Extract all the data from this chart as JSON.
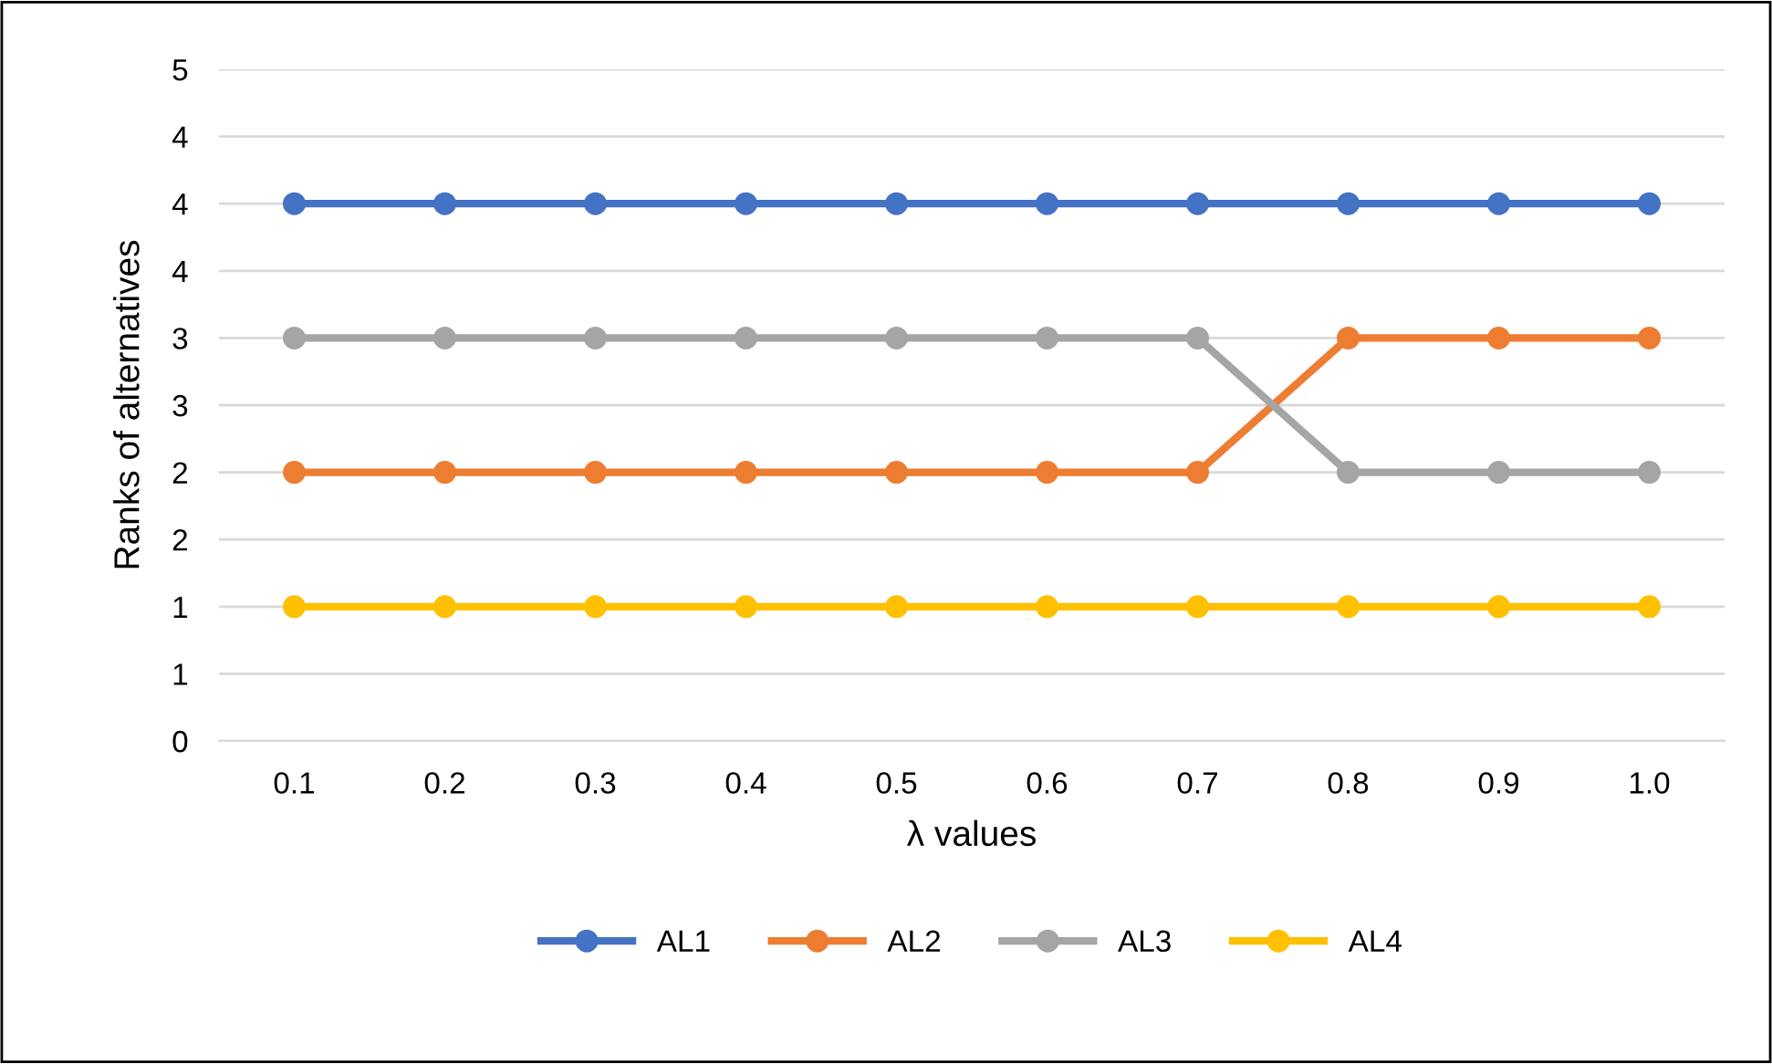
{
  "chart_data": {
    "type": "line",
    "xlabel": "λ values",
    "ylabel": "Ranks of alternatives",
    "categories": [
      "0.1",
      "0.2",
      "0.3",
      "0.4",
      "0.5",
      "0.6",
      "0.7",
      "0.8",
      "0.9",
      "1.0"
    ],
    "series": [
      {
        "name": "AL1",
        "color": "#4472c4",
        "values": [
          4,
          4,
          4,
          4,
          4,
          4,
          4,
          4,
          4,
          4
        ]
      },
      {
        "name": "AL2",
        "color": "#ed7d31",
        "values": [
          2,
          2,
          2,
          2,
          2,
          2,
          2,
          3,
          3,
          3
        ]
      },
      {
        "name": "AL3",
        "color": "#a5a5a5",
        "values": [
          3,
          3,
          3,
          3,
          3,
          3,
          3,
          2,
          2,
          2
        ]
      },
      {
        "name": "AL4",
        "color": "#ffc000",
        "values": [
          1,
          1,
          1,
          1,
          1,
          1,
          1,
          1,
          1,
          1
        ]
      }
    ],
    "ylim": [
      0,
      5
    ],
    "yticks": [
      0,
      {
        "value": 0.5,
        "label": "1"
      },
      1,
      {
        "value": 1.5,
        "label": "2"
      },
      2,
      {
        "value": 2.5,
        "label": "3"
      },
      3,
      {
        "value": 3.5,
        "label": "4"
      },
      4,
      {
        "value": 4.5,
        "label": "4"
      },
      5
    ],
    "grid": "y",
    "legend": "bottom",
    "marker": "circle",
    "line_style": "solid"
  }
}
